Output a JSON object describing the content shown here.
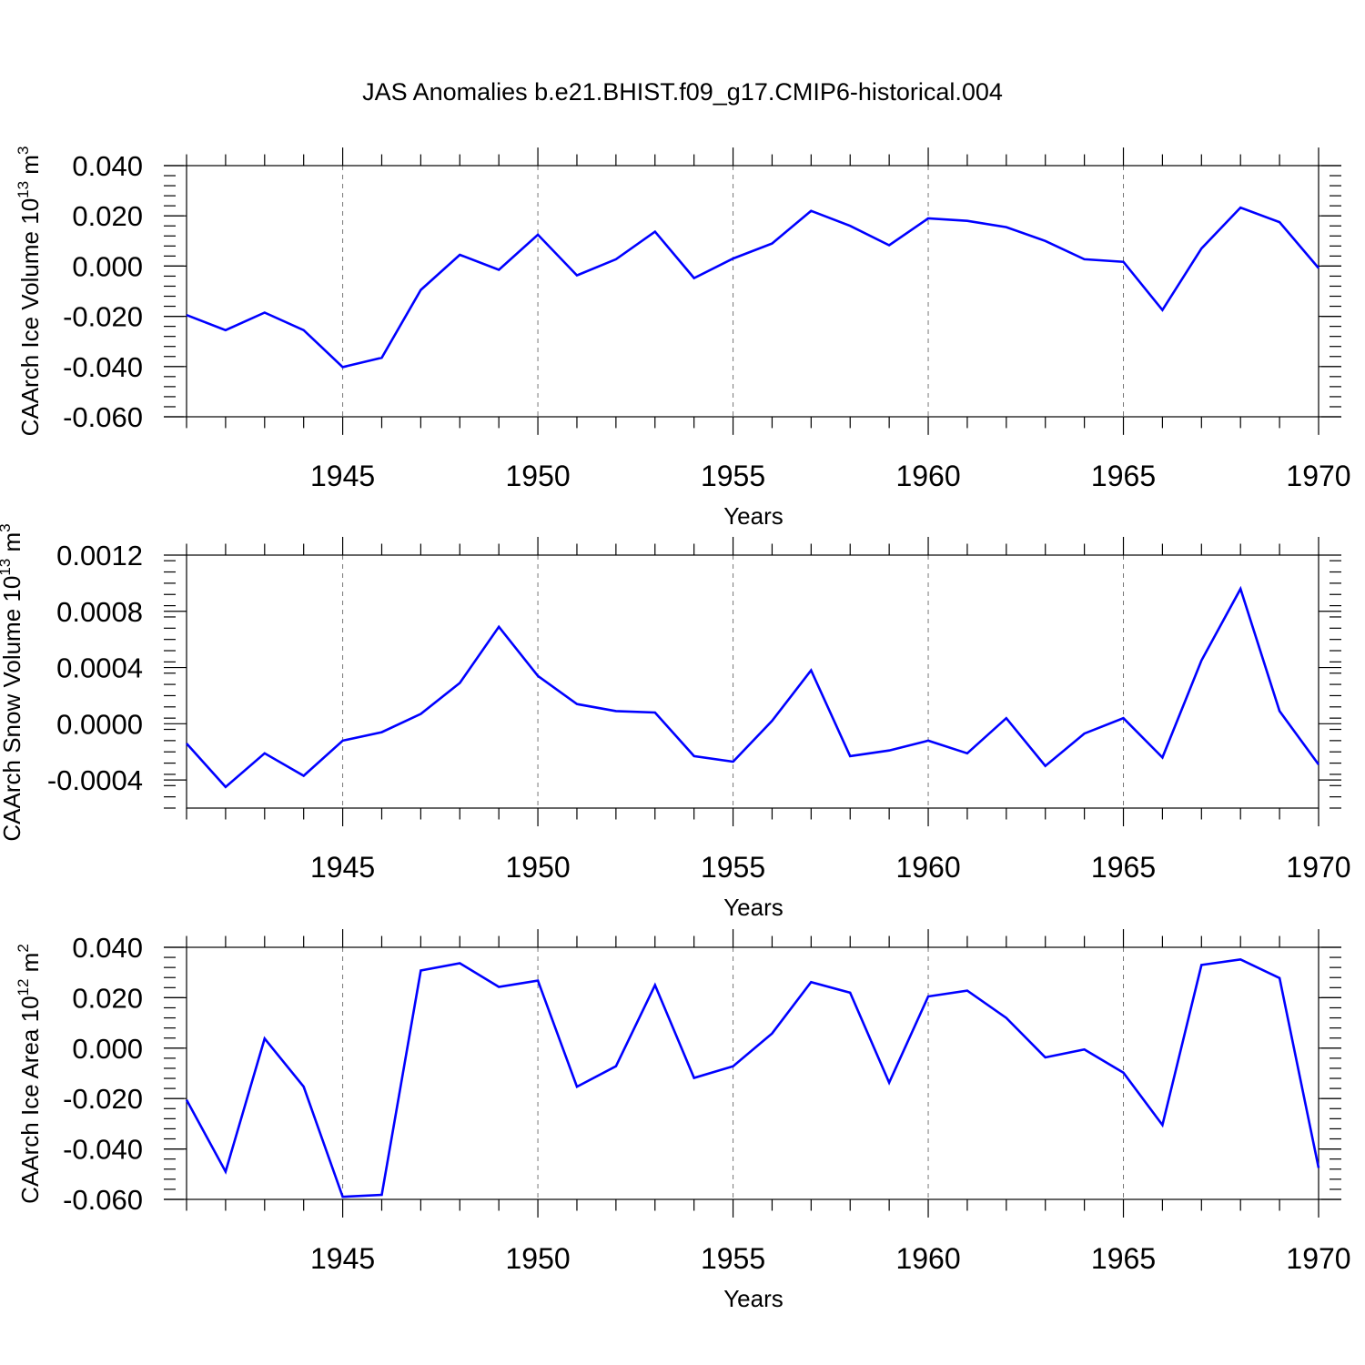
{
  "title": "JAS Anomalies b.e21.BHIST.f09_g17.CMIP6-historical.004",
  "colors": {
    "line": "#0000ff",
    "axis": "#000000",
    "grid": "#777777"
  },
  "chart_data": [
    {
      "type": "line",
      "ylabel_main": "CAArch Ice Volume 10",
      "ylabel_exp": "13",
      "ylabel_unit": " m",
      "ylabel_unit_exp": "3",
      "xlabel": "Years",
      "xlim": [
        1941,
        1970
      ],
      "ylim": [
        -0.06,
        0.04
      ],
      "yticks": [
        {
          "v": 0.04,
          "label": "0.040"
        },
        {
          "v": 0.02,
          "label": "0.020"
        },
        {
          "v": 0.0,
          "label": "0.000"
        },
        {
          "v": -0.02,
          "label": "-0.020"
        },
        {
          "v": -0.04,
          "label": "-0.040"
        },
        {
          "v": -0.06,
          "label": "-0.060"
        }
      ],
      "xticks": [
        "1945",
        "1950",
        "1955",
        "1960",
        "1965",
        "1970"
      ],
      "x": [
        1941,
        1942,
        1943,
        1944,
        1945,
        1946,
        1947,
        1948,
        1949,
        1950,
        1951,
        1952,
        1953,
        1954,
        1955,
        1956,
        1957,
        1958,
        1959,
        1960,
        1961,
        1962,
        1963,
        1964,
        1965,
        1966,
        1967,
        1968,
        1969,
        1970
      ],
      "values": [
        -0.0195,
        -0.0255,
        -0.0185,
        -0.0255,
        -0.0402,
        -0.0365,
        -0.0095,
        0.0045,
        -0.0015,
        0.0125,
        -0.0037,
        0.0027,
        0.0137,
        -0.0048,
        0.003,
        0.009,
        0.022,
        0.016,
        0.0083,
        0.019,
        0.018,
        0.0155,
        0.01,
        0.0027,
        0.0017,
        -0.0175,
        0.007,
        0.0233,
        0.0175,
        -0.0008
      ]
    },
    {
      "type": "line",
      "ylabel_main": "CAArch Snow Volume 10",
      "ylabel_exp": "13",
      "ylabel_unit": " m",
      "ylabel_unit_exp": "3",
      "xlabel": "Years",
      "xlim": [
        1941,
        1970
      ],
      "ylim": [
        -0.0006,
        0.0012
      ],
      "yticks": [
        {
          "v": 0.0012,
          "label": "0.0012"
        },
        {
          "v": 0.0008,
          "label": "0.0008"
        },
        {
          "v": 0.0004,
          "label": "0.0004"
        },
        {
          "v": 0.0,
          "label": "0.0000"
        },
        {
          "v": -0.0004,
          "label": "-0.0004"
        }
      ],
      "xticks": [
        "1945",
        "1950",
        "1955",
        "1960",
        "1965",
        "1970"
      ],
      "x": [
        1941,
        1942,
        1943,
        1944,
        1945,
        1946,
        1947,
        1948,
        1949,
        1950,
        1951,
        1952,
        1953,
        1954,
        1955,
        1956,
        1957,
        1958,
        1959,
        1960,
        1961,
        1962,
        1963,
        1964,
        1965,
        1966,
        1967,
        1968,
        1969,
        1970
      ],
      "values": [
        -0.00014,
        -0.00045,
        -0.00021,
        -0.00037,
        -0.00012,
        -6e-05,
        7e-05,
        0.00029,
        0.00069,
        0.00034,
        0.00014,
        9e-05,
        8e-05,
        -0.00023,
        -0.00027,
        2e-05,
        0.00038,
        -0.00023,
        -0.00019,
        -0.00012,
        -0.00021,
        4e-05,
        -0.0003,
        -7e-05,
        4e-05,
        -0.00024,
        0.00045,
        0.00096,
        9e-05,
        -0.00029
      ]
    },
    {
      "type": "line",
      "ylabel_main": "CAArch Ice Area 10",
      "ylabel_exp": "12",
      "ylabel_unit": " m",
      "ylabel_unit_exp": "2",
      "xlabel": "Years",
      "xlim": [
        1941,
        1970
      ],
      "ylim": [
        -0.06,
        0.04
      ],
      "yticks": [
        {
          "v": 0.04,
          "label": "0.040"
        },
        {
          "v": 0.02,
          "label": "0.020"
        },
        {
          "v": 0.0,
          "label": "0.000"
        },
        {
          "v": -0.02,
          "label": "-0.020"
        },
        {
          "v": -0.04,
          "label": "-0.040"
        },
        {
          "v": -0.06,
          "label": "-0.060"
        }
      ],
      "xticks": [
        "1945",
        "1950",
        "1955",
        "1960",
        "1965",
        "1970"
      ],
      "x": [
        1941,
        1942,
        1943,
        1944,
        1945,
        1946,
        1947,
        1948,
        1949,
        1950,
        1951,
        1952,
        1953,
        1954,
        1955,
        1956,
        1957,
        1958,
        1959,
        1960,
        1961,
        1962,
        1963,
        1964,
        1965,
        1966,
        1967,
        1968,
        1969,
        1970
      ],
      "values": [
        -0.0205,
        -0.049,
        0.0038,
        -0.0153,
        -0.059,
        -0.0582,
        0.0308,
        0.0337,
        0.0243,
        0.0268,
        -0.0153,
        -0.0072,
        0.025,
        -0.0118,
        -0.0072,
        0.0058,
        0.0262,
        0.022,
        -0.0137,
        0.0205,
        0.0228,
        0.012,
        -0.0037,
        -0.0005,
        -0.0097,
        -0.0305,
        0.033,
        0.0352,
        0.0278,
        -0.0475
      ]
    }
  ]
}
